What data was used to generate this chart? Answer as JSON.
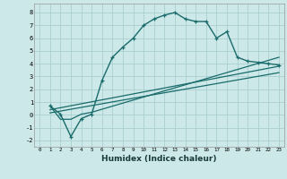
{
  "xlabel": "Humidex (Indice chaleur)",
  "bg_color": "#cce8e8",
  "grid_color": "#aad0d0",
  "line_color": "#1a6b6b",
  "xlim": [
    -0.5,
    23.5
  ],
  "ylim": [
    -2.5,
    8.7
  ],
  "xticks": [
    0,
    1,
    2,
    3,
    4,
    5,
    6,
    7,
    8,
    9,
    10,
    11,
    12,
    13,
    14,
    15,
    16,
    17,
    18,
    19,
    20,
    21,
    22,
    23
  ],
  "yticks": [
    -2,
    -1,
    0,
    1,
    2,
    3,
    4,
    5,
    6,
    7,
    8
  ],
  "line1_x": [
    1,
    2,
    3,
    4,
    5,
    6,
    7,
    8,
    9,
    10,
    11,
    12,
    13,
    14,
    15,
    16,
    17,
    18,
    19,
    20,
    21,
    22,
    23
  ],
  "line1_y": [
    0.7,
    0.05,
    -1.7,
    -0.3,
    0.05,
    2.7,
    4.5,
    5.3,
    6.0,
    7.0,
    7.5,
    7.8,
    8.0,
    7.5,
    7.3,
    7.3,
    6.0,
    6.5,
    4.5,
    4.2,
    4.1,
    4.0,
    3.9
  ],
  "line2_x": [
    1,
    2,
    3,
    4,
    5,
    23
  ],
  "line2_y": [
    0.7,
    -0.35,
    -0.35,
    0.05,
    0.2,
    4.5
  ],
  "line3_x": [
    1,
    23
  ],
  "line3_y": [
    0.4,
    3.8
  ],
  "line4_x": [
    1,
    23
  ],
  "line4_y": [
    0.15,
    3.3
  ]
}
